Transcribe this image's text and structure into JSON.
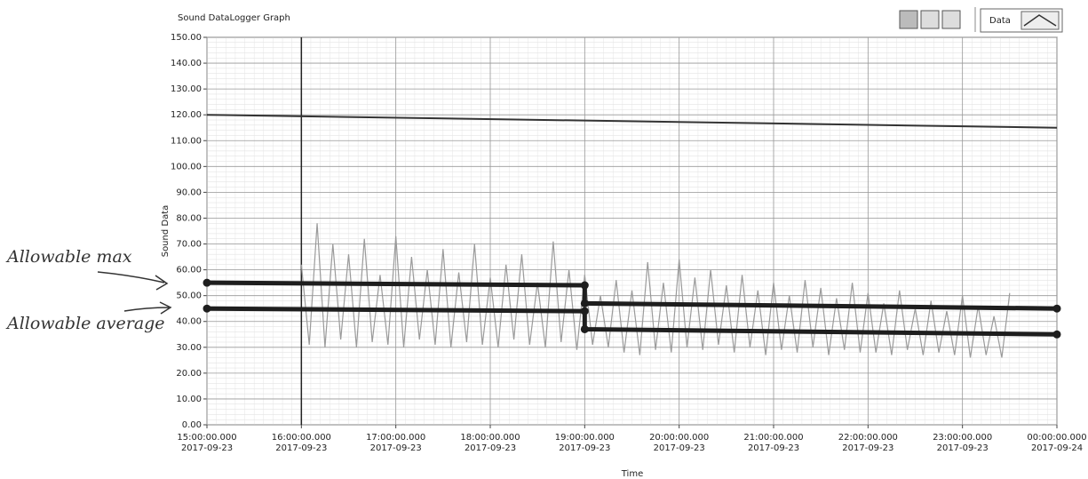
{
  "chart_data": {
    "type": "line",
    "title": "Sound DataLogger Graph",
    "xlabel": "Time",
    "ylabel": "Sound Data",
    "legend_label": "Data",
    "annotations": [
      "Allowable max",
      "Allowable average"
    ],
    "xlim": [
      0,
      540
    ],
    "xticks": [
      {
        "value": 0,
        "label": "15:00:00.000\n2017-09-23"
      },
      {
        "value": 60,
        "label": "16:00:00.000\n2017-09-23"
      },
      {
        "value": 120,
        "label": "17:00:00.000\n2017-09-23"
      },
      {
        "value": 180,
        "label": "18:00:00.000\n2017-09-23"
      },
      {
        "value": 240,
        "label": "19:00:00.000\n2017-09-23"
      },
      {
        "value": 300,
        "label": "20:00:00.000\n2017-09-23"
      },
      {
        "value": 360,
        "label": "21:00:00.000\n2017-09-23"
      },
      {
        "value": 420,
        "label": "22:00:00.000\n2017-09-23"
      },
      {
        "value": 480,
        "label": "23:00:00.000\n2017-09-23"
      },
      {
        "value": 540,
        "label": "00:00:00.000\n2017-09-24"
      }
    ],
    "ylim": [
      0,
      150
    ],
    "yticks": [
      {
        "value": 0,
        "label": "0.00"
      },
      {
        "value": 10,
        "label": "10.00"
      },
      {
        "value": 20,
        "label": "20.00"
      },
      {
        "value": 30,
        "label": "30.00"
      },
      {
        "value": 40,
        "label": "40.00"
      },
      {
        "value": 50,
        "label": "50.00"
      },
      {
        "value": 60,
        "label": "60.00"
      },
      {
        "value": 70,
        "label": "70.00"
      },
      {
        "value": 80,
        "label": "80.00"
      },
      {
        "value": 90,
        "label": "90.00"
      },
      {
        "value": 100,
        "label": "100.00"
      },
      {
        "value": 110,
        "label": "110.00"
      },
      {
        "value": 120,
        "label": "120.00"
      },
      {
        "value": 130,
        "label": "130.00"
      },
      {
        "value": 140,
        "label": "140.00"
      },
      {
        "value": 150,
        "label": "150.00"
      }
    ],
    "grid": true,
    "series": [
      {
        "color": "#9a9a9a",
        "width": 1.2,
        "x": [
          60,
          65,
          70,
          75,
          80,
          85,
          90,
          95,
          100,
          105,
          110,
          115,
          120,
          125,
          130,
          135,
          140,
          145,
          150,
          155,
          160,
          165,
          170,
          175,
          180,
          185,
          190,
          195,
          200,
          205,
          210,
          215,
          220,
          225,
          230,
          235,
          240,
          245,
          250,
          255,
          260,
          265,
          270,
          275,
          280,
          285,
          290,
          295,
          300,
          305,
          310,
          315,
          320,
          325,
          330,
          335,
          340,
          345,
          350,
          355,
          360,
          365,
          370,
          375,
          380,
          385,
          390,
          395,
          400,
          405,
          410,
          415,
          420,
          425,
          430,
          435,
          440,
          445,
          450,
          455,
          460,
          465,
          470,
          475,
          480,
          485,
          490,
          495,
          500,
          505,
          510
        ],
        "values": [
          62,
          31,
          78,
          30,
          70,
          33,
          66,
          30,
          72,
          32,
          58,
          31,
          73,
          30,
          65,
          33,
          60,
          31,
          68,
          30,
          59,
          32,
          70,
          31,
          57,
          30,
          62,
          33,
          66,
          31,
          55,
          30,
          71,
          32,
          60,
          29,
          58,
          31,
          50,
          30,
          56,
          28,
          52,
          27,
          63,
          29,
          55,
          28,
          64,
          30,
          57,
          29,
          60,
          31,
          54,
          28,
          58,
          30,
          52,
          27,
          55,
          29,
          50,
          28,
          56,
          30,
          53,
          27,
          49,
          29,
          55,
          28,
          51,
          28,
          47,
          27,
          52,
          29,
          45,
          27,
          48,
          28,
          44,
          27,
          50,
          26,
          46,
          27,
          42,
          26,
          51
        ]
      },
      {
        "color": "#1e1e1e",
        "width": 5,
        "dots": true,
        "x": [
          0,
          240,
          240,
          540
        ],
        "values": [
          55,
          54,
          47,
          45
        ]
      },
      {
        "color": "#1e1e1e",
        "width": 5,
        "dots": true,
        "x": [
          0,
          240,
          240,
          540
        ],
        "values": [
          45,
          44,
          37,
          35
        ]
      },
      {
        "color": "#333333",
        "width": 2,
        "x": [
          0,
          540
        ],
        "values": [
          120,
          115
        ]
      }
    ]
  }
}
